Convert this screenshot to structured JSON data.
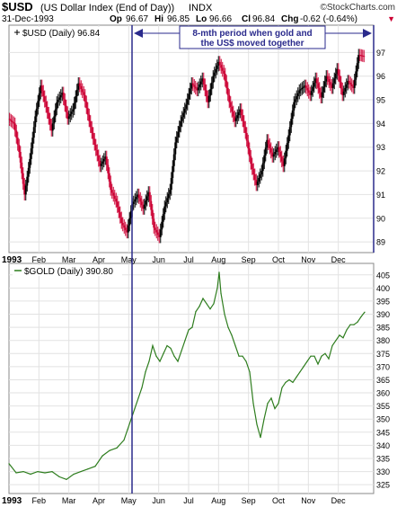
{
  "header": {
    "symbol": "$USD",
    "description": "(US Dollar Index (End of Day))",
    "exchange": "INDX",
    "date": "31-Dec-1993",
    "open_label": "Op",
    "open": "96.67",
    "high_label": "Hi",
    "high": "96.85",
    "low_label": "Lo",
    "low": "96.66",
    "close_label": "Cl",
    "close": "96.84",
    "change_label": "Chg",
    "change": "-0.62 (-0.64%)",
    "change_marker": "▼",
    "brand": "©StockCharts.com"
  },
  "annotation": {
    "line1": "8-mth period when gold and",
    "line2": "the US$ moved together"
  },
  "chart_data": [
    {
      "type": "candlestick",
      "legend": "$USD (Daily) 96.84",
      "ylim": [
        88.7,
        98.0
      ],
      "y_ticks": [
        89,
        90,
        91,
        92,
        93,
        94,
        95,
        96,
        97
      ],
      "x_ticks": [
        "1993",
        "Feb",
        "Mar",
        "Apr",
        "May",
        "Jun",
        "Jul",
        "Aug",
        "Sep",
        "Oct",
        "Nov",
        "Dec"
      ],
      "x_tick_t": [
        0.0,
        0.0833,
        0.1667,
        0.25,
        0.3333,
        0.4167,
        0.5,
        0.5833,
        0.6667,
        0.75,
        0.8333,
        0.9167
      ],
      "series": [
        {
          "points": [
            [
              0.0,
              94.2
            ],
            [
              0.015,
              94.0
            ],
            [
              0.03,
              92.8
            ],
            [
              0.045,
              91.0
            ],
            [
              0.06,
              92.5
            ],
            [
              0.075,
              94.3
            ],
            [
              0.09,
              95.6
            ],
            [
              0.105,
              94.7
            ],
            [
              0.12,
              93.7
            ],
            [
              0.135,
              94.9
            ],
            [
              0.15,
              95.3
            ],
            [
              0.165,
              94.2
            ],
            [
              0.18,
              94.6
            ],
            [
              0.195,
              95.7
            ],
            [
              0.21,
              95.2
            ],
            [
              0.225,
              94.1
            ],
            [
              0.24,
              93.1
            ],
            [
              0.255,
              92.2
            ],
            [
              0.27,
              92.6
            ],
            [
              0.285,
              91.2
            ],
            [
              0.3,
              90.7
            ],
            [
              0.315,
              89.8
            ],
            [
              0.33,
              89.4
            ],
            [
              0.345,
              90.6
            ],
            [
              0.36,
              91.0
            ],
            [
              0.375,
              90.4
            ],
            [
              0.39,
              91.1
            ],
            [
              0.405,
              89.6
            ],
            [
              0.42,
              89.2
            ],
            [
              0.435,
              90.5
            ],
            [
              0.45,
              91.2
            ],
            [
              0.465,
              93.2
            ],
            [
              0.48,
              94.1
            ],
            [
              0.495,
              94.8
            ],
            [
              0.51,
              95.7
            ],
            [
              0.525,
              95.4
            ],
            [
              0.54,
              95.9
            ],
            [
              0.555,
              94.9
            ],
            [
              0.57,
              96.0
            ],
            [
              0.585,
              96.6
            ],
            [
              0.6,
              96.1
            ],
            [
              0.615,
              94.9
            ],
            [
              0.63,
              94.1
            ],
            [
              0.645,
              94.6
            ],
            [
              0.66,
              93.6
            ],
            [
              0.675,
              92.3
            ],
            [
              0.69,
              91.4
            ],
            [
              0.705,
              92.0
            ],
            [
              0.72,
              93.3
            ],
            [
              0.735,
              92.6
            ],
            [
              0.75,
              93.0
            ],
            [
              0.765,
              92.2
            ],
            [
              0.78,
              93.5
            ],
            [
              0.795,
              94.9
            ],
            [
              0.81,
              95.4
            ],
            [
              0.825,
              95.6
            ],
            [
              0.84,
              95.2
            ],
            [
              0.855,
              95.9
            ],
            [
              0.87,
              95.1
            ],
            [
              0.885,
              96.0
            ],
            [
              0.9,
              95.5
            ],
            [
              0.915,
              96.3
            ],
            [
              0.93,
              95.2
            ],
            [
              0.945,
              95.8
            ],
            [
              0.96,
              95.5
            ],
            [
              0.975,
              96.9
            ],
            [
              0.99,
              96.84
            ]
          ]
        }
      ]
    },
    {
      "type": "line",
      "legend": "$GOLD (Daily) 390.80",
      "ylim": [
        323,
        408
      ],
      "y_ticks": [
        325,
        330,
        335,
        340,
        345,
        350,
        355,
        360,
        365,
        370,
        375,
        380,
        385,
        390,
        395,
        400,
        405
      ],
      "x_ticks": [
        "1993",
        "Feb",
        "Mar",
        "Apr",
        "May",
        "Jun",
        "Jul",
        "Aug",
        "Sep",
        "Oct",
        "Nov",
        "Dec"
      ],
      "x_tick_t": [
        0.0,
        0.0833,
        0.1667,
        0.25,
        0.3333,
        0.4167,
        0.5,
        0.5833,
        0.6667,
        0.75,
        0.8333,
        0.9167
      ],
      "series": [
        {
          "points": [
            [
              0.0,
              333
            ],
            [
              0.02,
              329.5
            ],
            [
              0.04,
              330
            ],
            [
              0.06,
              329
            ],
            [
              0.08,
              330
            ],
            [
              0.1,
              329.5
            ],
            [
              0.12,
              330
            ],
            [
              0.14,
              328
            ],
            [
              0.16,
              327
            ],
            [
              0.18,
              329
            ],
            [
              0.2,
              330
            ],
            [
              0.22,
              331
            ],
            [
              0.24,
              332
            ],
            [
              0.26,
              336
            ],
            [
              0.28,
              338
            ],
            [
              0.3,
              339
            ],
            [
              0.32,
              342
            ],
            [
              0.33,
              346
            ],
            [
              0.34,
              350
            ],
            [
              0.35,
              354
            ],
            [
              0.36,
              358
            ],
            [
              0.37,
              362
            ],
            [
              0.38,
              368
            ],
            [
              0.39,
              372
            ],
            [
              0.4,
              378
            ],
            [
              0.41,
              374
            ],
            [
              0.42,
              372
            ],
            [
              0.43,
              375
            ],
            [
              0.44,
              378
            ],
            [
              0.45,
              377
            ],
            [
              0.46,
              374
            ],
            [
              0.47,
              372
            ],
            [
              0.48,
              376
            ],
            [
              0.49,
              380
            ],
            [
              0.5,
              384
            ],
            [
              0.51,
              385
            ],
            [
              0.52,
              391
            ],
            [
              0.53,
              393
            ],
            [
              0.54,
              396
            ],
            [
              0.55,
              394
            ],
            [
              0.56,
              392
            ],
            [
              0.57,
              394
            ],
            [
              0.58,
              400
            ],
            [
              0.585,
              406
            ],
            [
              0.59,
              398
            ],
            [
              0.6,
              390
            ],
            [
              0.61,
              385
            ],
            [
              0.62,
              382
            ],
            [
              0.63,
              378
            ],
            [
              0.64,
              374
            ],
            [
              0.65,
              374
            ],
            [
              0.66,
              372
            ],
            [
              0.67,
              368
            ],
            [
              0.68,
              356
            ],
            [
              0.69,
              348
            ],
            [
              0.7,
              343
            ],
            [
              0.71,
              350
            ],
            [
              0.72,
              356
            ],
            [
              0.73,
              358
            ],
            [
              0.74,
              354
            ],
            [
              0.75,
              356
            ],
            [
              0.76,
              362
            ],
            [
              0.77,
              364
            ],
            [
              0.78,
              365
            ],
            [
              0.79,
              364
            ],
            [
              0.8,
              366
            ],
            [
              0.81,
              368
            ],
            [
              0.82,
              370
            ],
            [
              0.83,
              372
            ],
            [
              0.84,
              374
            ],
            [
              0.85,
              374
            ],
            [
              0.86,
              371
            ],
            [
              0.87,
              374
            ],
            [
              0.88,
              375
            ],
            [
              0.89,
              373
            ],
            [
              0.9,
              378
            ],
            [
              0.91,
              380
            ],
            [
              0.92,
              382
            ],
            [
              0.93,
              381
            ],
            [
              0.94,
              384
            ],
            [
              0.95,
              386
            ],
            [
              0.96,
              386
            ],
            [
              0.97,
              387
            ],
            [
              0.98,
              389
            ],
            [
              0.99,
              390.8
            ]
          ]
        }
      ]
    }
  ],
  "colors": {
    "usd_up": "#000000",
    "usd_down": "#cc0033",
    "gold_line": "#2e7d1e",
    "marker_line": "#2a2a8c",
    "annotation_text": "#2a2a8c",
    "annotation_border": "#2a2a8c",
    "grid": "#e2e2e2",
    "frame": "#888888",
    "legend_accent": "#000000"
  }
}
